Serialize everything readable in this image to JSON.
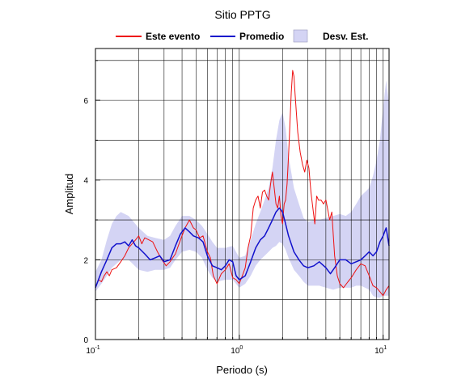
{
  "chart_data": {
    "type": "line",
    "title": "Sitio PPTG",
    "xlabel": "Periodo (s)",
    "ylabel": "Amplitud",
    "xscale": "log",
    "xlim": [
      0.1,
      11.0
    ],
    "ylim": [
      0,
      7.3
    ],
    "grid": true,
    "legend_position": "top",
    "x_tick_labels": [
      {
        "value": 0.1,
        "base": "10",
        "exp": "-1"
      },
      {
        "value": 1,
        "base": "10",
        "exp": "0"
      },
      {
        "value": 10,
        "base": "10",
        "exp": "1"
      }
    ],
    "y_ticks": [
      0,
      2,
      4,
      6
    ],
    "series": [
      {
        "name": "Este evento",
        "color": "#ee1111",
        "kind": "line",
        "points": [
          [
            0.1,
            1.3
          ],
          [
            0.105,
            1.5
          ],
          [
            0.11,
            1.45
          ],
          [
            0.115,
            1.6
          ],
          [
            0.12,
            1.7
          ],
          [
            0.125,
            1.6
          ],
          [
            0.13,
            1.75
          ],
          [
            0.14,
            1.8
          ],
          [
            0.15,
            1.95
          ],
          [
            0.16,
            2.1
          ],
          [
            0.17,
            2.3
          ],
          [
            0.18,
            2.4
          ],
          [
            0.19,
            2.5
          ],
          [
            0.2,
            2.6
          ],
          [
            0.21,
            2.4
          ],
          [
            0.22,
            2.55
          ],
          [
            0.235,
            2.5
          ],
          [
            0.25,
            2.45
          ],
          [
            0.27,
            2.2
          ],
          [
            0.29,
            2.0
          ],
          [
            0.31,
            1.85
          ],
          [
            0.33,
            1.95
          ],
          [
            0.36,
            2.15
          ],
          [
            0.39,
            2.5
          ],
          [
            0.42,
            2.8
          ],
          [
            0.45,
            3.0
          ],
          [
            0.48,
            2.8
          ],
          [
            0.5,
            2.75
          ],
          [
            0.53,
            2.55
          ],
          [
            0.56,
            2.6
          ],
          [
            0.6,
            2.2
          ],
          [
            0.63,
            2.05
          ],
          [
            0.66,
            1.6
          ],
          [
            0.7,
            1.4
          ],
          [
            0.75,
            1.65
          ],
          [
            0.8,
            1.75
          ],
          [
            0.85,
            1.9
          ],
          [
            0.9,
            1.55
          ],
          [
            0.95,
            1.5
          ],
          [
            1.0,
            1.4
          ],
          [
            1.05,
            1.6
          ],
          [
            1.1,
            1.8
          ],
          [
            1.15,
            2.3
          ],
          [
            1.2,
            2.6
          ],
          [
            1.25,
            3.3
          ],
          [
            1.3,
            3.5
          ],
          [
            1.35,
            3.6
          ],
          [
            1.4,
            3.3
          ],
          [
            1.45,
            3.7
          ],
          [
            1.5,
            3.75
          ],
          [
            1.55,
            3.6
          ],
          [
            1.6,
            3.5
          ],
          [
            1.65,
            3.9
          ],
          [
            1.7,
            4.2
          ],
          [
            1.75,
            3.8
          ],
          [
            1.8,
            3.4
          ],
          [
            1.85,
            3.3
          ],
          [
            1.9,
            3.6
          ],
          [
            1.95,
            3.1
          ],
          [
            2.0,
            2.9
          ],
          [
            2.05,
            3.4
          ],
          [
            2.1,
            3.5
          ],
          [
            2.15,
            3.9
          ],
          [
            2.2,
            4.6
          ],
          [
            2.25,
            5.4
          ],
          [
            2.3,
            6.2
          ],
          [
            2.35,
            6.75
          ],
          [
            2.4,
            6.6
          ],
          [
            2.45,
            6.1
          ],
          [
            2.55,
            5.2
          ],
          [
            2.65,
            4.7
          ],
          [
            2.75,
            4.4
          ],
          [
            2.85,
            4.2
          ],
          [
            2.95,
            4.5
          ],
          [
            3.05,
            4.3
          ],
          [
            3.15,
            3.7
          ],
          [
            3.25,
            3.3
          ],
          [
            3.35,
            2.9
          ],
          [
            3.45,
            3.6
          ],
          [
            3.55,
            3.5
          ],
          [
            3.7,
            3.5
          ],
          [
            3.85,
            3.4
          ],
          [
            4.0,
            3.5
          ],
          [
            4.1,
            3.3
          ],
          [
            4.25,
            3.0
          ],
          [
            4.4,
            3.2
          ],
          [
            4.6,
            2.1
          ],
          [
            4.8,
            1.6
          ],
          [
            5.0,
            1.4
          ],
          [
            5.3,
            1.3
          ],
          [
            5.7,
            1.45
          ],
          [
            6.0,
            1.55
          ],
          [
            6.5,
            1.75
          ],
          [
            7.0,
            1.9
          ],
          [
            7.5,
            1.85
          ],
          [
            8.0,
            1.6
          ],
          [
            8.5,
            1.35
          ],
          [
            9.0,
            1.3
          ],
          [
            9.5,
            1.2
          ],
          [
            10.0,
            1.1
          ],
          [
            10.5,
            1.25
          ],
          [
            11.0,
            1.35
          ]
        ]
      },
      {
        "name": "Promedio",
        "color": "#1111cc",
        "kind": "line",
        "points": [
          [
            0.1,
            1.3
          ],
          [
            0.11,
            1.7
          ],
          [
            0.12,
            2.0
          ],
          [
            0.13,
            2.3
          ],
          [
            0.14,
            2.4
          ],
          [
            0.15,
            2.4
          ],
          [
            0.16,
            2.45
          ],
          [
            0.17,
            2.35
          ],
          [
            0.18,
            2.5
          ],
          [
            0.19,
            2.35
          ],
          [
            0.2,
            2.3
          ],
          [
            0.22,
            2.15
          ],
          [
            0.24,
            2.0
          ],
          [
            0.26,
            2.05
          ],
          [
            0.28,
            2.1
          ],
          [
            0.3,
            1.95
          ],
          [
            0.33,
            2.0
          ],
          [
            0.36,
            2.35
          ],
          [
            0.39,
            2.65
          ],
          [
            0.42,
            2.8
          ],
          [
            0.45,
            2.7
          ],
          [
            0.48,
            2.6
          ],
          [
            0.52,
            2.55
          ],
          [
            0.56,
            2.45
          ],
          [
            0.6,
            2.1
          ],
          [
            0.65,
            1.85
          ],
          [
            0.7,
            1.8
          ],
          [
            0.75,
            1.75
          ],
          [
            0.8,
            1.85
          ],
          [
            0.85,
            2.0
          ],
          [
            0.9,
            1.95
          ],
          [
            0.95,
            1.6
          ],
          [
            1.0,
            1.5
          ],
          [
            1.1,
            1.6
          ],
          [
            1.2,
            1.95
          ],
          [
            1.3,
            2.3
          ],
          [
            1.4,
            2.5
          ],
          [
            1.5,
            2.6
          ],
          [
            1.6,
            2.8
          ],
          [
            1.7,
            3.0
          ],
          [
            1.8,
            3.2
          ],
          [
            1.9,
            3.3
          ],
          [
            2.0,
            3.2
          ],
          [
            2.1,
            2.9
          ],
          [
            2.2,
            2.6
          ],
          [
            2.4,
            2.2
          ],
          [
            2.6,
            2.0
          ],
          [
            2.8,
            1.85
          ],
          [
            3.0,
            1.8
          ],
          [
            3.3,
            1.85
          ],
          [
            3.6,
            1.95
          ],
          [
            4.0,
            1.8
          ],
          [
            4.3,
            1.65
          ],
          [
            4.6,
            1.8
          ],
          [
            5.0,
            2.0
          ],
          [
            5.5,
            2.0
          ],
          [
            6.0,
            1.9
          ],
          [
            6.5,
            1.95
          ],
          [
            7.0,
            2.0
          ],
          [
            7.5,
            2.1
          ],
          [
            8.0,
            2.2
          ],
          [
            8.5,
            2.1
          ],
          [
            9.0,
            2.2
          ],
          [
            9.5,
            2.45
          ],
          [
            10.0,
            2.6
          ],
          [
            10.5,
            2.8
          ],
          [
            11.0,
            2.35
          ]
        ]
      },
      {
        "name": "Desv. Est.",
        "color": "#d4d4f4",
        "kind": "band",
        "points": [
          [
            0.1,
            1.2,
            1.7
          ],
          [
            0.11,
            1.4,
            2.0
          ],
          [
            0.12,
            1.6,
            2.5
          ],
          [
            0.13,
            1.8,
            2.9
          ],
          [
            0.14,
            1.9,
            3.1
          ],
          [
            0.15,
            2.0,
            3.2
          ],
          [
            0.17,
            2.0,
            3.1
          ],
          [
            0.2,
            1.75,
            2.8
          ],
          [
            0.23,
            1.7,
            2.6
          ],
          [
            0.26,
            1.75,
            2.55
          ],
          [
            0.3,
            1.75,
            2.5
          ],
          [
            0.33,
            1.8,
            2.6
          ],
          [
            0.36,
            2.0,
            2.85
          ],
          [
            0.4,
            2.2,
            3.1
          ],
          [
            0.45,
            2.25,
            3.1
          ],
          [
            0.5,
            2.2,
            3.0
          ],
          [
            0.55,
            2.05,
            2.85
          ],
          [
            0.6,
            1.75,
            2.65
          ],
          [
            0.65,
            1.55,
            2.45
          ],
          [
            0.7,
            1.45,
            2.3
          ],
          [
            0.8,
            1.5,
            2.3
          ],
          [
            0.9,
            1.5,
            2.35
          ],
          [
            1.0,
            1.3,
            2.05
          ],
          [
            1.1,
            1.4,
            2.1
          ],
          [
            1.2,
            1.6,
            2.5
          ],
          [
            1.3,
            1.85,
            2.9
          ],
          [
            1.4,
            2.0,
            3.2
          ],
          [
            1.5,
            2.1,
            3.5
          ],
          [
            1.6,
            2.2,
            3.8
          ],
          [
            1.7,
            2.3,
            4.3
          ],
          [
            1.8,
            2.35,
            5.0
          ],
          [
            1.9,
            2.45,
            5.5
          ],
          [
            2.0,
            2.4,
            5.7
          ],
          [
            2.1,
            2.25,
            5.3
          ],
          [
            2.2,
            2.05,
            4.6
          ],
          [
            2.4,
            1.75,
            3.8
          ],
          [
            2.6,
            1.6,
            3.4
          ],
          [
            2.8,
            1.45,
            3.05
          ],
          [
            3.0,
            1.35,
            2.95
          ],
          [
            3.3,
            1.35,
            3.0
          ],
          [
            3.6,
            1.35,
            3.0
          ],
          [
            4.0,
            1.3,
            3.05
          ],
          [
            4.5,
            1.25,
            3.1
          ],
          [
            5.0,
            1.3,
            3.15
          ],
          [
            5.5,
            1.3,
            3.1
          ],
          [
            6.0,
            1.3,
            3.2
          ],
          [
            6.5,
            1.35,
            3.4
          ],
          [
            7.0,
            1.35,
            3.6
          ],
          [
            7.5,
            1.3,
            3.7
          ],
          [
            8.0,
            1.25,
            3.8
          ],
          [
            8.5,
            1.1,
            4.1
          ],
          [
            9.0,
            1.05,
            4.5
          ],
          [
            9.5,
            1.05,
            5.0
          ],
          [
            10.0,
            1.1,
            5.8
          ],
          [
            10.5,
            1.1,
            6.5
          ],
          [
            11.0,
            1.1,
            5.9
          ]
        ]
      }
    ]
  }
}
